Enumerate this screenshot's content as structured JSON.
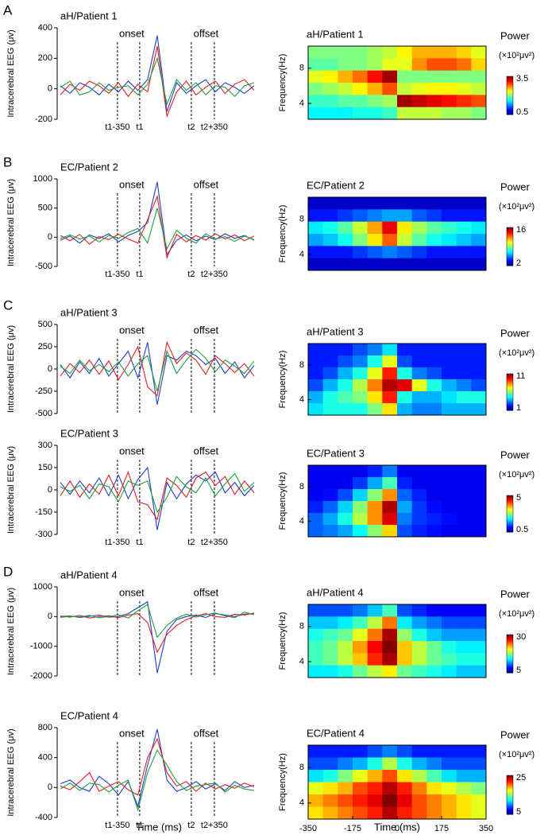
{
  "chart_data": [
    {
      "type": "line",
      "panel": "A",
      "title": "aH/Patient 1",
      "ylabel": "Intracerebral EEG (μv)",
      "ylim": [
        -200,
        400
      ],
      "yticks": [
        -200,
        0,
        200,
        400
      ],
      "annotations": [
        "onset",
        "offset"
      ],
      "markers": [
        "t1-350",
        "t1",
        "t2",
        "t2+350"
      ],
      "series": [
        {
          "color": "#1f3fc8",
          "values": [
            20,
            -30,
            40,
            10,
            -40,
            30,
            -20,
            50,
            -10,
            60,
            350,
            -150,
            40,
            -30,
            20,
            60,
            -20,
            40,
            10,
            -30,
            20
          ]
        },
        {
          "color": "#e02020",
          "values": [
            -40,
            30,
            -10,
            50,
            20,
            -30,
            40,
            -50,
            30,
            -20,
            280,
            -180,
            -20,
            50,
            -40,
            10,
            50,
            -30,
            30,
            60,
            -10
          ]
        },
        {
          "color": "#20a040",
          "values": [
            10,
            50,
            -40,
            -20,
            40,
            -10,
            10,
            20,
            -40,
            30,
            200,
            -100,
            60,
            -10,
            40,
            -40,
            20,
            10,
            -50,
            20,
            40
          ]
        }
      ]
    },
    {
      "type": "heatmap",
      "title": "aH/Patient 1",
      "ylabel": "Frequency(Hz)",
      "xlim": [
        -350,
        350
      ],
      "ylim": [
        2.2,
        10.5
      ],
      "yticks": [
        4,
        8
      ],
      "colorbar_label": "Power",
      "colorbar_unit": "(×10²μv²)",
      "clim": [
        0.5,
        3.5
      ],
      "z": [
        [
          2.0,
          2.0,
          2.0,
          2.0,
          2.1,
          2.2,
          2.4,
          2.6,
          2.6,
          2.6,
          2.5,
          2.3
        ],
        [
          1.9,
          1.9,
          2.0,
          2.0,
          2.1,
          2.3,
          2.3,
          2.7,
          2.9,
          2.9,
          2.8,
          2.5
        ],
        [
          2.3,
          2.4,
          2.6,
          2.8,
          3.1,
          3.4,
          2.0,
          2.0,
          2.0,
          2.0,
          2.0,
          2.0
        ],
        [
          2.0,
          2.1,
          2.2,
          2.4,
          2.6,
          2.9,
          2.2,
          2.3,
          2.4,
          2.4,
          2.3,
          2.2
        ],
        [
          1.8,
          1.8,
          1.9,
          1.9,
          2.0,
          2.1,
          3.4,
          3.3,
          3.2,
          3.1,
          3.0,
          2.9
        ],
        [
          1.6,
          1.6,
          1.6,
          1.7,
          1.7,
          1.8,
          2.2,
          2.2,
          2.2,
          2.1,
          2.1,
          2.0
        ]
      ]
    },
    {
      "type": "line",
      "panel": "B",
      "title": "EC/Patient 2",
      "ylabel": "Intracerebral EEG (μv)",
      "ylim": [
        -500,
        1000
      ],
      "yticks": [
        -500,
        0,
        500,
        1000
      ],
      "annotations": [
        "onset",
        "offset"
      ],
      "markers": [
        "t1-350",
        "t1",
        "t2",
        "t2+350"
      ],
      "series": [
        {
          "color": "#1f3fc8",
          "values": [
            -50,
            20,
            -100,
            40,
            -20,
            60,
            -80,
            30,
            100,
            250,
            950,
            -300,
            -50,
            40,
            -60,
            20,
            -40,
            60,
            -20,
            30,
            -50
          ]
        },
        {
          "color": "#e02020",
          "values": [
            30,
            -60,
            50,
            -120,
            10,
            -40,
            50,
            -30,
            -100,
            300,
            700,
            -350,
            50,
            -80,
            30,
            -50,
            60,
            -30,
            40,
            -60,
            20
          ]
        },
        {
          "color": "#20a040",
          "values": [
            -20,
            40,
            -30,
            20,
            -80,
            30,
            -20,
            80,
            150,
            -100,
            500,
            -200,
            120,
            -20,
            -100,
            60,
            -30,
            10,
            -70,
            20,
            -40
          ]
        }
      ]
    },
    {
      "type": "heatmap",
      "title": "EC/Patient 2",
      "ylabel": "Frequency(Hz)",
      "xlim": [
        -350,
        350
      ],
      "ylim": [
        2.2,
        10.5
      ],
      "yticks": [
        4,
        8
      ],
      "colorbar_label": "Power",
      "colorbar_unit": "(×10²μv²)",
      "clim": [
        2,
        16
      ],
      "z": [
        [
          3,
          3,
          3,
          3,
          3,
          3,
          3,
          3,
          3,
          3,
          3,
          3
        ],
        [
          4,
          4,
          4.5,
          5,
          5.5,
          6,
          6,
          5,
          4.5,
          4,
          4,
          4
        ],
        [
          7,
          7.5,
          8.5,
          10,
          12,
          14.5,
          11,
          9.5,
          8.5,
          8,
          7.5,
          7
        ],
        [
          6,
          6.5,
          7.5,
          9,
          11,
          13,
          10,
          8.5,
          7.5,
          7,
          6.5,
          6
        ],
        [
          4,
          4,
          4,
          4.5,
          5,
          5.5,
          5,
          4.5,
          4,
          4,
          4,
          4
        ],
        [
          3,
          3,
          3,
          3,
          3,
          3,
          3,
          3,
          3,
          3,
          3,
          3
        ]
      ]
    },
    {
      "type": "line",
      "panel": "C",
      "title": "aH/Patient 3",
      "ylabel": "Intracerebral EEG (μv)",
      "ylim": [
        -500,
        500
      ],
      "yticks": [
        -500,
        -250,
        0,
        250,
        500
      ],
      "annotations": [
        "onset",
        "offset"
      ],
      "series": [
        {
          "color": "#1f3fc8",
          "values": [
            50,
            -100,
            80,
            -50,
            120,
            -80,
            60,
            200,
            -100,
            300,
            -400,
            150,
            100,
            200,
            150,
            50,
            120,
            -50,
            80,
            -100,
            40
          ]
        },
        {
          "color": "#e02020",
          "values": [
            -80,
            60,
            -40,
            100,
            -60,
            90,
            -120,
            50,
            250,
            -200,
            -300,
            300,
            60,
            180,
            100,
            -60,
            150,
            60,
            -40,
            60,
            -80
          ]
        },
        {
          "color": "#20a040",
          "values": [
            30,
            -50,
            100,
            -20,
            50,
            -30,
            80,
            -80,
            60,
            150,
            -250,
            200,
            -50,
            100,
            220,
            120,
            -30,
            100,
            30,
            -50,
            90
          ]
        }
      ]
    },
    {
      "type": "heatmap",
      "title": "aH/Patient 3",
      "ylabel": "Frequency(Hz)",
      "xlim": [
        -350,
        350
      ],
      "ylim": [
        2.2,
        10.5
      ],
      "yticks": [
        4,
        8
      ],
      "colorbar_label": "Power",
      "colorbar_unit": "(×10²μv²)",
      "clim": [
        1,
        11
      ],
      "z": [
        [
          2.5,
          2.5,
          2.5,
          3,
          3.5,
          4.5,
          2.5,
          2.5,
          2.5,
          2.5,
          2.5,
          2.5
        ],
        [
          2.5,
          2.5,
          3,
          3.5,
          5,
          7,
          3,
          2.5,
          2.5,
          2.5,
          2.5,
          2.5
        ],
        [
          2.5,
          3,
          4,
          5,
          7,
          9.5,
          5,
          3.5,
          3,
          2.5,
          2.5,
          2.5
        ],
        [
          3,
          4,
          5,
          6.5,
          8.5,
          10.5,
          10,
          7,
          5,
          4,
          3.5,
          3
        ],
        [
          4,
          5,
          5.5,
          6,
          7.5,
          9.5,
          5,
          4,
          4,
          4.5,
          5,
          5
        ],
        [
          4.5,
          5,
          5,
          5,
          6,
          7.5,
          4,
          3.5,
          3.5,
          4,
          4,
          4
        ]
      ]
    },
    {
      "type": "line",
      "title": "EC/Patient 3",
      "ylabel": "Intracerebral EEG (μv)",
      "ylim": [
        -300,
        300
      ],
      "yticks": [
        -300,
        -150,
        0,
        150,
        300
      ],
      "annotations": [
        "onset",
        "offset"
      ],
      "markers": [
        "t1-350",
        "t1",
        "t2",
        "t2+350"
      ],
      "series": [
        {
          "color": "#1f3fc8",
          "values": [
            50,
            -30,
            60,
            -20,
            80,
            -40,
            100,
            -60,
            70,
            150,
            -270,
            50,
            -60,
            40,
            100,
            60,
            120,
            -20,
            50,
            -40,
            30
          ]
        },
        {
          "color": "#e02020",
          "values": [
            -40,
            60,
            -50,
            40,
            -30,
            100,
            -40,
            120,
            -80,
            -100,
            -200,
            80,
            30,
            -50,
            80,
            120,
            30,
            90,
            -30,
            60,
            -20
          ]
        },
        {
          "color": "#20a040",
          "values": [
            20,
            -10,
            30,
            -60,
            40,
            20,
            -80,
            60,
            30,
            60,
            -150,
            -50,
            90,
            20,
            -20,
            80,
            -40,
            40,
            110,
            -10,
            50
          ]
        }
      ]
    },
    {
      "type": "heatmap",
      "title": "EC/Patient 3",
      "ylabel": "Frequency(Hz)",
      "xlim": [
        -350,
        350
      ],
      "ylim": [
        2.2,
        10.5
      ],
      "yticks": [
        4,
        8
      ],
      "colorbar_label": "Power",
      "colorbar_unit": "(×10²μv²)",
      "clim": [
        0.5,
        5
      ],
      "z": [
        [
          1,
          1,
          1,
          1,
          1.2,
          1.6,
          1,
          1,
          1,
          1,
          1,
          1
        ],
        [
          1,
          1,
          1,
          1.3,
          1.8,
          2.5,
          1.2,
          1,
          1,
          1,
          1,
          1
        ],
        [
          1,
          1.1,
          1.4,
          2,
          2.8,
          3.8,
          1.5,
          1.2,
          1,
          1,
          1,
          1
        ],
        [
          1.2,
          1.5,
          2,
          2.8,
          3.8,
          4.8,
          1.8,
          1.3,
          1.1,
          1,
          1,
          1
        ],
        [
          1.5,
          1.8,
          2.3,
          3,
          3.8,
          4.6,
          1.6,
          1.3,
          1.2,
          1.1,
          1,
          1
        ],
        [
          1.5,
          1.6,
          1.8,
          2.2,
          2.8,
          3.5,
          1.4,
          1.2,
          1.1,
          1,
          1,
          1
        ]
      ]
    },
    {
      "type": "line",
      "panel": "D",
      "title": "aH/Patient 4",
      "ylabel": "Intracerebral EEG (μv)",
      "ylim": [
        -2000,
        1000
      ],
      "yticks": [
        -2000,
        -1000,
        0,
        1000
      ],
      "annotations": [
        "onset",
        "offset"
      ],
      "series": [
        {
          "color": "#1f3fc8",
          "values": [
            0,
            20,
            -30,
            10,
            50,
            -20,
            0,
            100,
            300,
            500,
            -1900,
            -500,
            -100,
            0,
            50,
            -30,
            100,
            50,
            0,
            80,
            100
          ]
        },
        {
          "color": "#e02020",
          "values": [
            20,
            -20,
            40,
            -50,
            0,
            30,
            -40,
            50,
            100,
            -200,
            -1200,
            -600,
            -300,
            -100,
            20,
            100,
            0,
            -30,
            80,
            50,
            120
          ]
        },
        {
          "color": "#20a040",
          "values": [
            -30,
            10,
            -10,
            40,
            -40,
            0,
            60,
            -50,
            200,
            400,
            -700,
            -300,
            -50,
            80,
            -20,
            60,
            120,
            20,
            -40,
            150,
            60
          ]
        }
      ]
    },
    {
      "type": "heatmap",
      "title": "aH/Patient 4",
      "ylabel": "Frequency(Hz)",
      "xlim": [
        -350,
        350
      ],
      "ylim": [
        2.2,
        10.5
      ],
      "yticks": [
        4,
        8
      ],
      "colorbar_label": "Power",
      "colorbar_unit": "(×10²μv²)",
      "clim": [
        5,
        30
      ],
      "z": [
        [
          10,
          10,
          10,
          11,
          13,
          16,
          10,
          9,
          8,
          8,
          8,
          8
        ],
        [
          13,
          13,
          14,
          16,
          19,
          24,
          14,
          12,
          11,
          10,
          10,
          10
        ],
        [
          15,
          16,
          17,
          20,
          24,
          29,
          18,
          15,
          13,
          12,
          12,
          12
        ],
        [
          16,
          17,
          19,
          23,
          27,
          30,
          22,
          19,
          17,
          15,
          14,
          14
        ],
        [
          16,
          17,
          19,
          22,
          26,
          29,
          22,
          19,
          17,
          16,
          15,
          15
        ],
        [
          14,
          14,
          15,
          17,
          19,
          21,
          17,
          16,
          15,
          14,
          13,
          13
        ]
      ]
    },
    {
      "type": "line",
      "title": "EC/Patient 4",
      "ylabel": "Intracerebral EEG (μv)",
      "xlabel": "Time (ms)",
      "ylim": [
        -400,
        800
      ],
      "yticks": [
        -400,
        0,
        400,
        800
      ],
      "annotations": [
        "onset",
        "offset"
      ],
      "markers": [
        "t1-350",
        "t1",
        "t2",
        "t2+350"
      ],
      "series": [
        {
          "color": "#1f3fc8",
          "values": [
            50,
            100,
            0,
            -50,
            150,
            50,
            -100,
            80,
            -250,
            300,
            780,
            100,
            -50,
            0,
            80,
            -20,
            50,
            -40,
            80,
            0,
            30
          ]
        },
        {
          "color": "#e02020",
          "values": [
            20,
            -30,
            80,
            200,
            -50,
            20,
            80,
            -30,
            -100,
            400,
            650,
            200,
            20,
            80,
            -50,
            60,
            -20,
            40,
            -10,
            60,
            10
          ]
        },
        {
          "color": "#20a040",
          "values": [
            -20,
            60,
            -40,
            60,
            40,
            -60,
            30,
            100,
            -300,
            200,
            500,
            300,
            80,
            -40,
            20,
            40,
            60,
            -60,
            30,
            -20,
            -40
          ]
        }
      ]
    },
    {
      "type": "heatmap",
      "title": "EC/Patient 4",
      "ylabel": "Frequency(Hz)",
      "xlabel": "Time (ms)",
      "xlim": [
        -350,
        350
      ],
      "xticks": [
        -350,
        -175,
        0,
        175,
        350
      ],
      "ylim": [
        2.2,
        10.5
      ],
      "yticks": [
        4,
        8
      ],
      "colorbar_label": "Power",
      "colorbar_unit": "(×10²μv²)",
      "clim": [
        5,
        25
      ],
      "z": [
        [
          8,
          8,
          8,
          8,
          9,
          10,
          9,
          8,
          8,
          8,
          8,
          8
        ],
        [
          9,
          9,
          10,
          11,
          13,
          16,
          13,
          11,
          10,
          9,
          9,
          9
        ],
        [
          12,
          13,
          15,
          17,
          19,
          21,
          18,
          16,
          14,
          12,
          11,
          11
        ],
        [
          17,
          18,
          19,
          21,
          22,
          24,
          22,
          20,
          18,
          17,
          16,
          15
        ],
        [
          19,
          20,
          21,
          22,
          23,
          25,
          23,
          21,
          20,
          19,
          18,
          17
        ],
        [
          18,
          19,
          20,
          21,
          22,
          24,
          22,
          21,
          20,
          19,
          18,
          17
        ]
      ]
    }
  ]
}
